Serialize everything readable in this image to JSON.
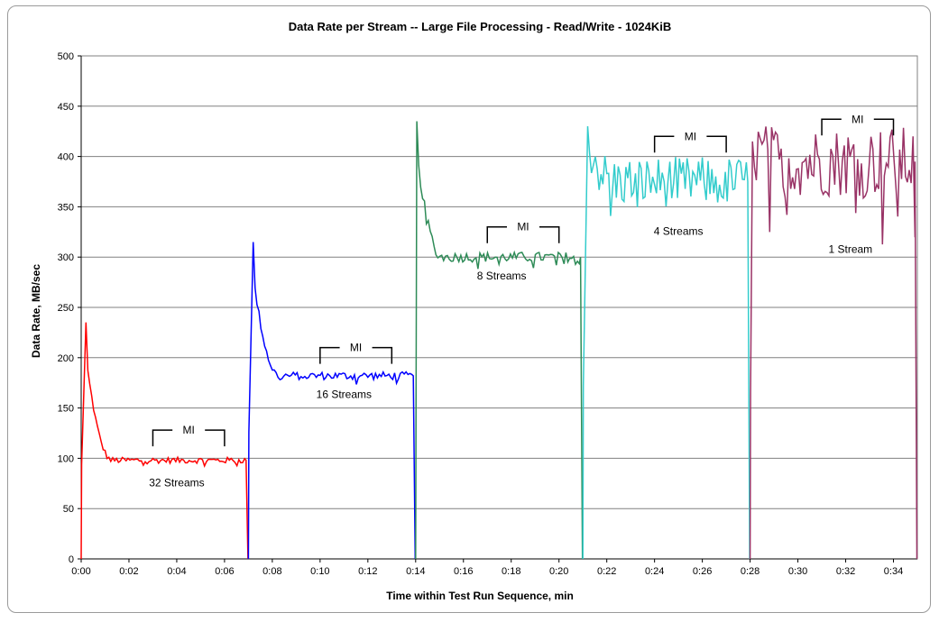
{
  "chart_data": {
    "type": "line",
    "title": "Data Rate per Stream -- Large File Processing - Read/Write - 1024KiB",
    "xlabel": "Time within Test Run Sequence, min",
    "ylabel": "Data Rate, MB/sec",
    "ylim": [
      0,
      500
    ],
    "xlim": [
      0,
      35
    ],
    "y_ticks": [
      0,
      50,
      100,
      150,
      200,
      250,
      300,
      350,
      400,
      450,
      500
    ],
    "x_ticks": [
      "0:00",
      "0:02",
      "0:04",
      "0:06",
      "0:08",
      "0:10",
      "0:12",
      "0:14",
      "0:16",
      "0:18",
      "0:20",
      "0:22",
      "0:24",
      "0:26",
      "0:28",
      "0:30",
      "0:32",
      "0:34"
    ],
    "grid": "horizontal",
    "series": [
      {
        "color": "#ff0000",
        "segment": [
          0,
          7.0
        ],
        "ramp_peak": 235,
        "ramp_x": 0.2,
        "settle": 98,
        "noise": 3,
        "end_drop": 6.9
      },
      {
        "color": "#0000ff",
        "segment": [
          7.0,
          14.0
        ],
        "ramp_peak": 315,
        "ramp_x": 7.2,
        "settle": 182,
        "noise": 4,
        "end_drop": 13.9
      },
      {
        "color": "#2e8b57",
        "segment": [
          14.0,
          21.0
        ],
        "ramp_peak": 435,
        "ramp_x": 14.05,
        "settle": 300,
        "noise": 5,
        "end_drop": 20.9
      },
      {
        "color": "#33cccc",
        "segment": [
          21.0,
          28.0
        ],
        "ramp_peak": 430,
        "ramp_x": 21.2,
        "settle": 375,
        "noise": 25,
        "end_drop": 27.9
      },
      {
        "color": "#993366",
        "segment": [
          28.0,
          35.0
        ],
        "ramp_peak": 415,
        "ramp_x": 28.1,
        "settle": 395,
        "noise": 35,
        "end_drop": 34.9
      }
    ],
    "annotations": [
      {
        "text": "32 Streams",
        "x": 4.0,
        "y": 72
      },
      {
        "text": "16 Streams",
        "x": 11.0,
        "y": 160
      },
      {
        "text": "8 Streams",
        "x": 17.6,
        "y": 278
      },
      {
        "text": "4 Streams",
        "x": 25.0,
        "y": 322
      },
      {
        "text": "1 Stream",
        "x": 32.2,
        "y": 304
      }
    ],
    "mi_brackets": [
      {
        "text": "MI",
        "x0": 3.0,
        "x1": 6.0,
        "y": 128
      },
      {
        "text": "MI",
        "x0": 10.0,
        "x1": 13.0,
        "y": 210
      },
      {
        "text": "MI",
        "x0": 17.0,
        "x1": 20.0,
        "y": 330
      },
      {
        "text": "MI",
        "x0": 24.0,
        "x1": 27.0,
        "y": 420
      },
      {
        "text": "MI",
        "x0": 31.0,
        "x1": 34.0,
        "y": 437
      }
    ]
  }
}
